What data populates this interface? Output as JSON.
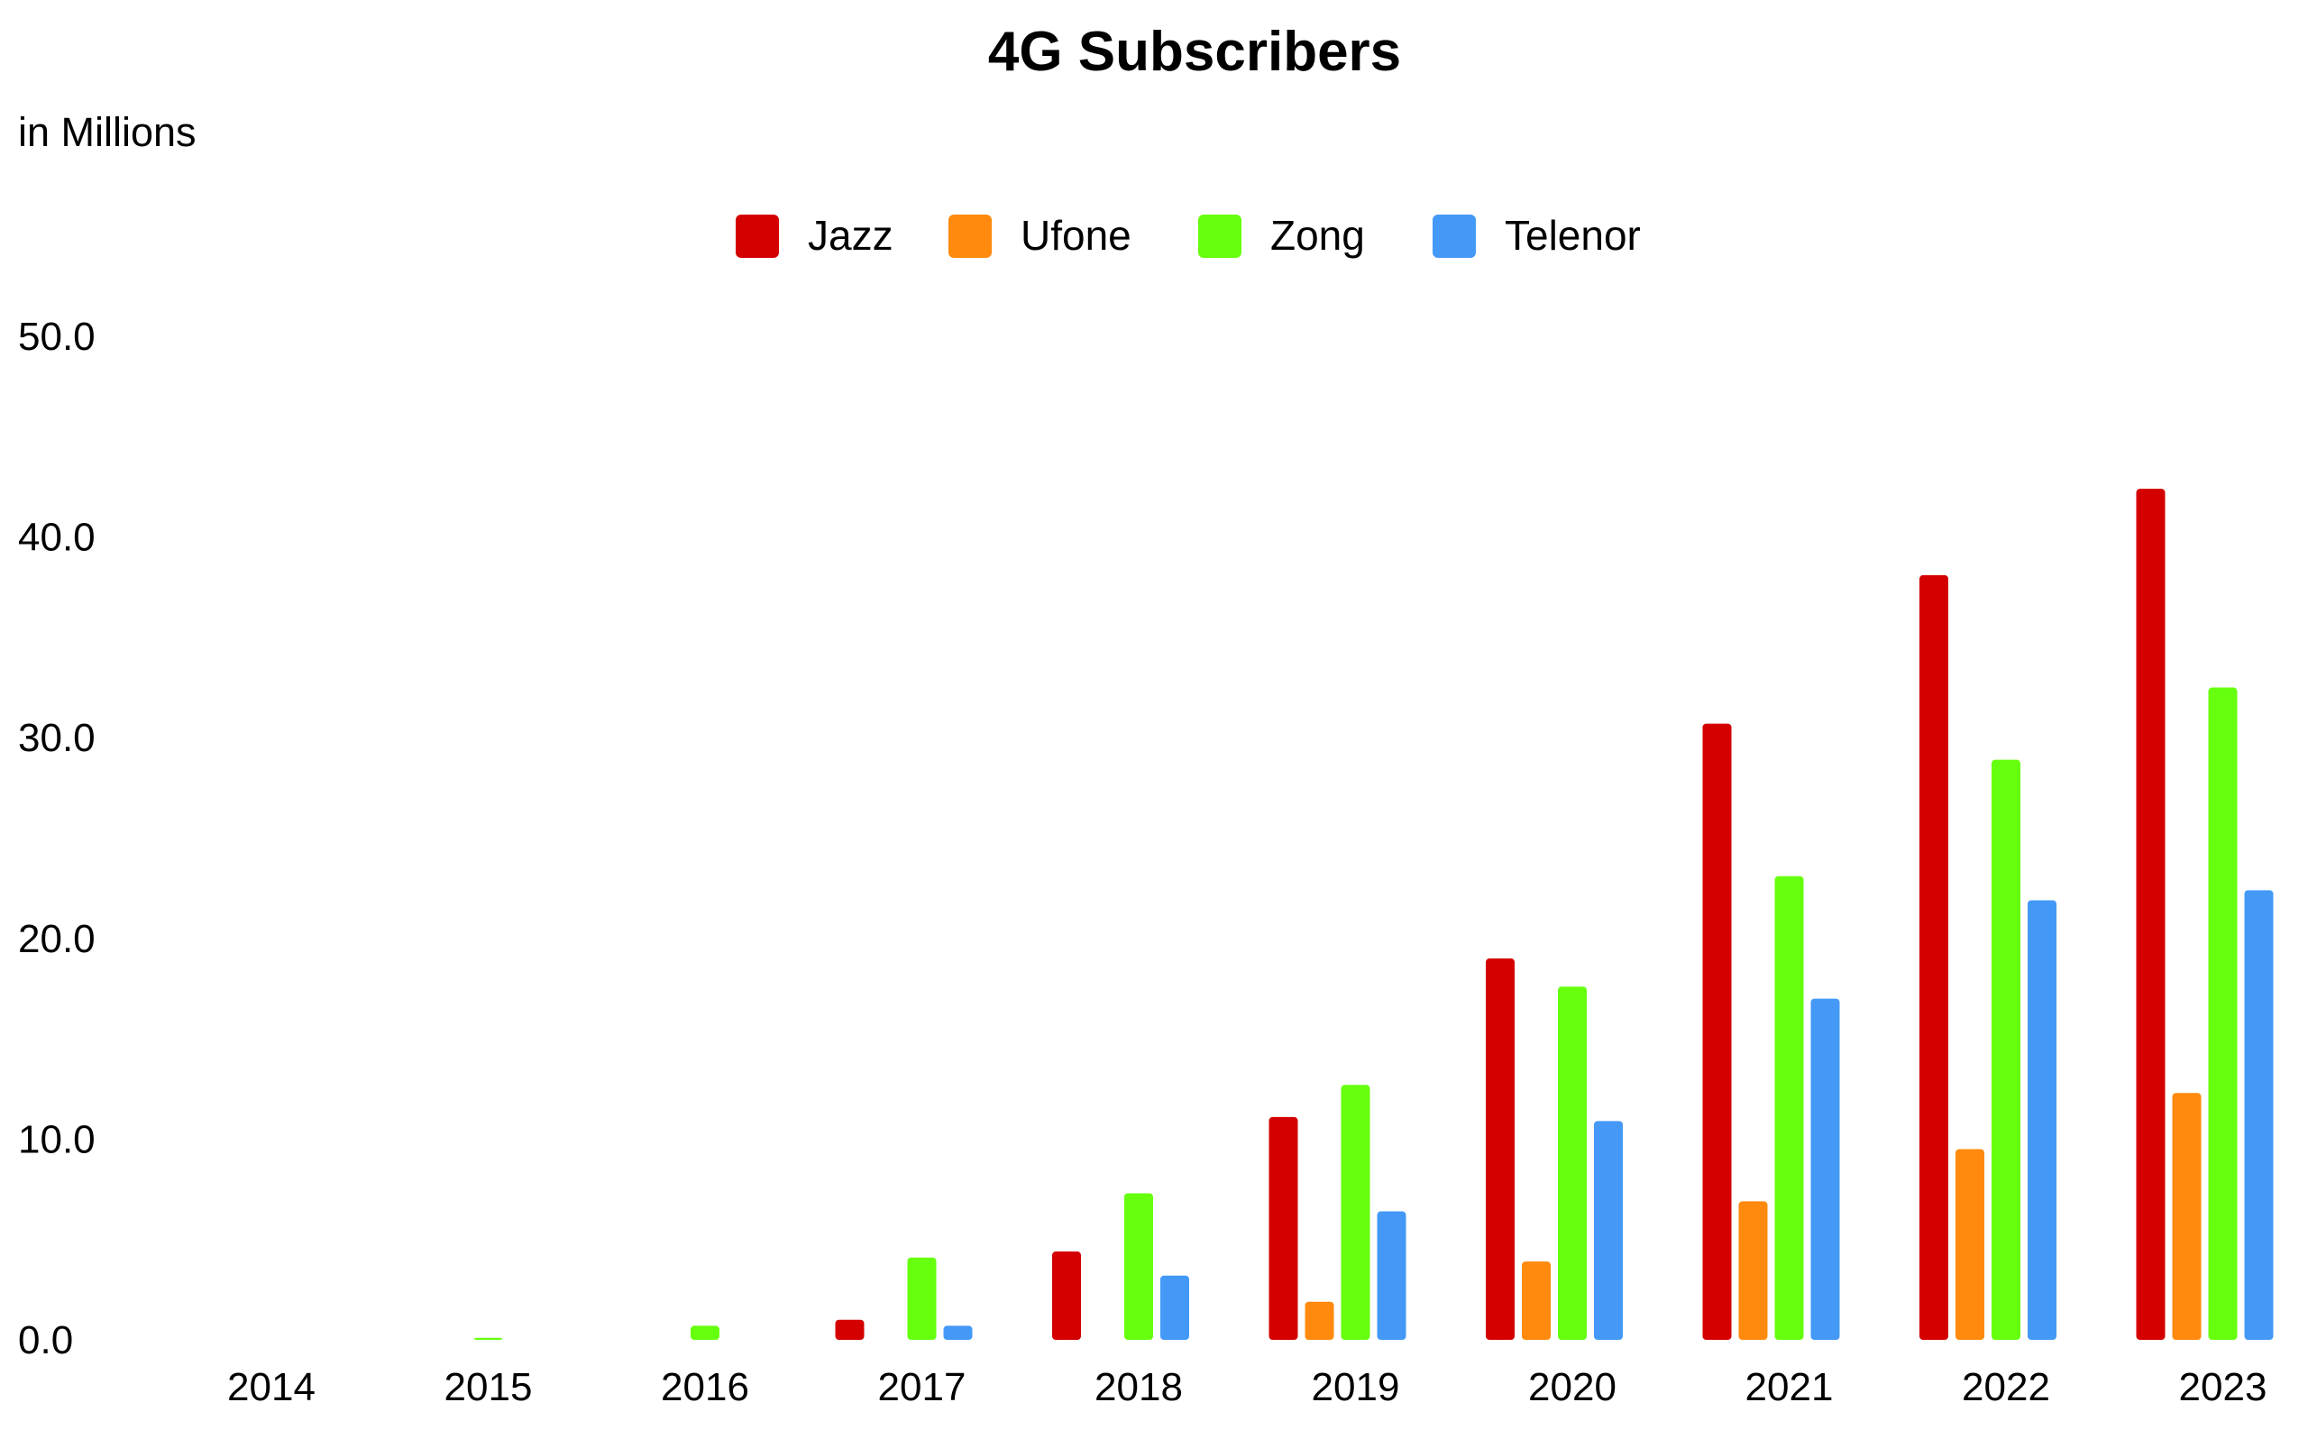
{
  "chart_data": {
    "type": "bar",
    "title": "4G Subscribers",
    "ylabel": "in Millions",
    "xlabel": "",
    "categories": [
      "2014",
      "2015",
      "2016",
      "2017",
      "2018",
      "2019",
      "2020",
      "2021",
      "2022",
      "2023"
    ],
    "series": [
      {
        "name": "Jazz",
        "color": "#d40000",
        "values": [
          0,
          0,
          0,
          1.0,
          4.4,
          11.1,
          19.0,
          30.7,
          38.1,
          42.4
        ]
      },
      {
        "name": "Ufone",
        "color": "#ff8a0d",
        "values": [
          0,
          0,
          0,
          0,
          0,
          1.9,
          3.9,
          6.9,
          9.5,
          12.3
        ]
      },
      {
        "name": "Zong",
        "color": "#66ff0e",
        "values": [
          0,
          0.1,
          0.7,
          4.1,
          7.3,
          12.7,
          17.6,
          23.1,
          28.9,
          32.5
        ]
      },
      {
        "name": "Telenor",
        "color": "#4499f7",
        "values": [
          0,
          0,
          0,
          0.7,
          3.2,
          6.4,
          10.9,
          17.0,
          21.9,
          22.4
        ]
      }
    ],
    "ylim": [
      0,
      50
    ],
    "yticks": [
      "0.0",
      "10.0",
      "20.0",
      "30.0",
      "40.0",
      "50.0"
    ],
    "grid": false,
    "legend": "top-center"
  }
}
